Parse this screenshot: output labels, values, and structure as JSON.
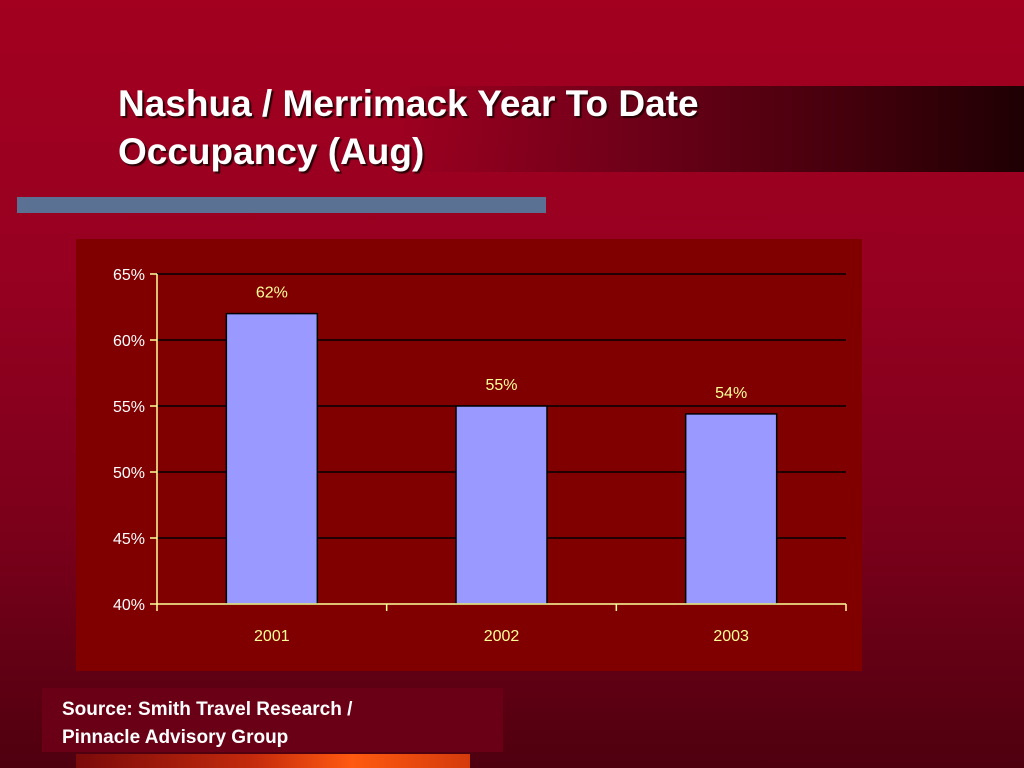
{
  "title": {
    "line1": "Nashua / Merrimack Year To Date",
    "line2": "Occupancy (Aug)"
  },
  "source": {
    "line1": "Source: Smith Travel Research /",
    "line2": "Pinnacle Advisory Group"
  },
  "colors": {
    "background": "#a3001f",
    "plot_area": "#800000",
    "bar_fill": "#9999ff",
    "axis": "#ffff99",
    "gridline": "#000000",
    "accent_rule": "#5a7193"
  },
  "chart_data": {
    "type": "bar",
    "categories": [
      "2001",
      "2002",
      "2003"
    ],
    "values": [
      62,
      55,
      54.4
    ],
    "data_labels": [
      "62%",
      "55%",
      "54%"
    ],
    "title": "",
    "xlabel": "",
    "ylabel": "",
    "ylim": [
      40,
      65
    ],
    "yticks": [
      40,
      45,
      50,
      55,
      60,
      65
    ],
    "ytick_labels": [
      "40%",
      "45%",
      "50%",
      "55%",
      "60%",
      "65%"
    ],
    "grid": true,
    "legend": false
  }
}
